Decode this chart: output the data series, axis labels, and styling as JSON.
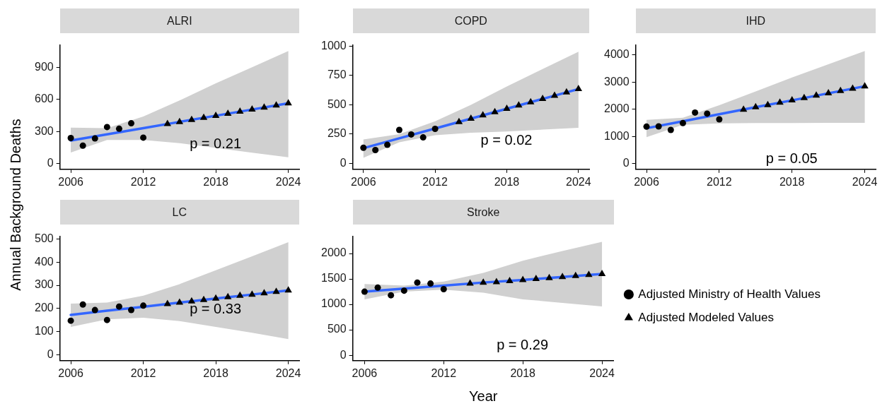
{
  "chart_data": [
    {
      "type": "scatter",
      "title": "ALRI",
      "ylabel": "Annual Background Deaths",
      "xlim": [
        2005.1,
        2024.9
      ],
      "xticks": [
        2006,
        2012,
        2018,
        2024
      ],
      "ylim": [
        -55,
        1110
      ],
      "yticks": [
        0,
        300,
        600,
        900
      ],
      "grid": false,
      "annotations": [
        "p = 0.21"
      ],
      "series": [
        {
          "type": "line",
          "color": "#3366ff",
          "x": [
            2006,
            2009,
            2012,
            2015,
            2018,
            2021,
            2024
          ],
          "values": [
            215,
            273,
            331,
            389,
            447,
            505,
            563
          ],
          "lower": [
            102,
            220,
            219,
            190,
            145,
            100,
            57
          ],
          "upper": [
            335,
            330,
            440,
            590,
            750,
            900,
            1053
          ]
        },
        {
          "type": "scatter",
          "marker": "circle",
          "color": "#000000",
          "x": [
            2006,
            2007,
            2008,
            2009,
            2010,
            2011,
            2012
          ],
          "values": [
            238,
            167,
            234,
            341,
            325,
            376,
            242
          ]
        },
        {
          "type": "scatter",
          "marker": "triangle",
          "color": "#000000",
          "x": [
            2014,
            2015,
            2016,
            2017,
            2018,
            2019,
            2020,
            2021,
            2022,
            2023,
            2024
          ],
          "values": [
            370,
            389,
            408,
            428,
            447,
            466,
            486,
            505,
            524,
            544,
            563
          ]
        }
      ]
    },
    {
      "type": "scatter",
      "title": "COPD",
      "xlim": [
        2005.1,
        2024.9
      ],
      "xticks": [
        2006,
        2012,
        2018,
        2024
      ],
      "ylim": [
        -50,
        1010
      ],
      "yticks": [
        0,
        250,
        500,
        750,
        1000
      ],
      "grid": false,
      "annotations": [
        "p = 0.02"
      ],
      "series": [
        {
          "type": "line",
          "color": "#3366ff",
          "x": [
            2006,
            2009,
            2012,
            2015,
            2018,
            2021,
            2024
          ],
          "values": [
            130,
            214,
            298,
            382,
            466,
            550,
            634
          ],
          "lower": [
            48,
            180,
            240,
            262,
            272,
            288,
            304
          ],
          "upper": [
            205,
            250,
            360,
            500,
            656,
            804,
            952
          ]
        },
        {
          "type": "scatter",
          "marker": "circle",
          "color": "#000000",
          "x": [
            2006,
            2007,
            2008,
            2009,
            2010,
            2011,
            2012
          ],
          "values": [
            134,
            114,
            159,
            286,
            247,
            222,
            295
          ]
        },
        {
          "type": "scatter",
          "marker": "triangle",
          "color": "#000000",
          "x": [
            2014,
            2015,
            2016,
            2017,
            2018,
            2019,
            2020,
            2021,
            2022,
            2023,
            2024
          ],
          "values": [
            354,
            382,
            410,
            438,
            466,
            494,
            522,
            550,
            578,
            606,
            634
          ]
        }
      ]
    },
    {
      "type": "scatter",
      "title": "IHD",
      "xlim": [
        2005.1,
        2024.9
      ],
      "xticks": [
        2006,
        2012,
        2018,
        2024
      ],
      "ylim": [
        -215,
        4375
      ],
      "yticks": [
        0,
        1000,
        2000,
        3000,
        4000
      ],
      "grid": false,
      "annotations": [
        "p = 0.05"
      ],
      "series": [
        {
          "type": "line",
          "color": "#3366ff",
          "x": [
            2006,
            2009,
            2012,
            2015,
            2018,
            2021,
            2024
          ],
          "values": [
            1300,
            1560,
            1820,
            2080,
            2330,
            2590,
            2850
          ],
          "lower": [
            970,
            1430,
            1480,
            1490,
            1490,
            1500,
            1500
          ],
          "upper": [
            1610,
            1690,
            2150,
            2660,
            3170,
            3660,
            4150
          ]
        },
        {
          "type": "scatter",
          "marker": "circle",
          "color": "#000000",
          "x": [
            2006,
            2007,
            2008,
            2009,
            2010,
            2011,
            2012
          ],
          "values": [
            1360,
            1370,
            1240,
            1490,
            1880,
            1840,
            1630
          ]
        },
        {
          "type": "scatter",
          "marker": "triangle",
          "color": "#000000",
          "x": [
            2014,
            2015,
            2016,
            2017,
            2018,
            2019,
            2020,
            2021,
            2022,
            2023,
            2024
          ],
          "values": [
            1990,
            2080,
            2160,
            2250,
            2330,
            2420,
            2510,
            2590,
            2680,
            2760,
            2850
          ]
        }
      ]
    },
    {
      "type": "scatter",
      "title": "LC",
      "xlim": [
        2005.1,
        2024.9
      ],
      "xticks": [
        2006,
        2012,
        2018,
        2024
      ],
      "ylim": [
        -26,
        512
      ],
      "yticks": [
        0,
        100,
        200,
        300,
        400,
        500
      ],
      "grid": false,
      "annotations": [
        "p = 0.33"
      ],
      "series": [
        {
          "type": "line",
          "color": "#3366ff",
          "x": [
            2006,
            2009,
            2012,
            2015,
            2018,
            2021,
            2024
          ],
          "values": [
            172,
            190,
            207,
            225,
            243,
            260,
            278
          ],
          "lower": [
            120,
            153,
            160,
            145,
            120,
            95,
            67
          ],
          "upper": [
            221,
            225,
            255,
            305,
            365,
            425,
            486
          ]
        },
        {
          "type": "scatter",
          "marker": "circle",
          "color": "#000000",
          "x": [
            2006,
            2007,
            2008,
            2009,
            2010,
            2011,
            2012
          ],
          "values": [
            147,
            217,
            193,
            150,
            208,
            193,
            212
          ]
        },
        {
          "type": "scatter",
          "marker": "triangle",
          "color": "#000000",
          "x": [
            2014,
            2015,
            2016,
            2017,
            2018,
            2019,
            2020,
            2021,
            2022,
            2023,
            2024
          ],
          "values": [
            219,
            225,
            231,
            237,
            243,
            249,
            255,
            260,
            266,
            272,
            278
          ]
        }
      ]
    },
    {
      "type": "scatter",
      "title": "Stroke",
      "xlabel": "Year",
      "legend": "right",
      "xlim": [
        2005.1,
        2024.9
      ],
      "xticks": [
        2006,
        2012,
        2018,
        2024
      ],
      "ylim": [
        -107,
        2340
      ],
      "yticks": [
        0,
        500,
        1000,
        1500,
        2000
      ],
      "grid": false,
      "annotations": [
        "p = 0.29"
      ],
      "series": [
        {
          "type": "line",
          "color": "#3366ff",
          "x": [
            2006,
            2009,
            2012,
            2015,
            2018,
            2021,
            2024
          ],
          "values": [
            1250,
            1310,
            1370,
            1430,
            1480,
            1540,
            1600
          ],
          "lower": [
            1100,
            1250,
            1290,
            1230,
            1100,
            1030,
            960
          ],
          "upper": [
            1400,
            1370,
            1450,
            1620,
            1860,
            2050,
            2230
          ]
        },
        {
          "name": "Adjusted Ministry of Health Values",
          "type": "scatter",
          "marker": "circle",
          "color": "#000000",
          "x": [
            2006,
            2007,
            2008,
            2009,
            2010,
            2011,
            2012
          ],
          "values": [
            1250,
            1330,
            1180,
            1270,
            1430,
            1410,
            1300
          ]
        },
        {
          "name": "Adjusted Modeled Values",
          "type": "scatter",
          "marker": "triangle",
          "color": "#000000",
          "x": [
            2014,
            2015,
            2016,
            2017,
            2018,
            2019,
            2020,
            2021,
            2022,
            2023,
            2024
          ],
          "values": [
            1410,
            1430,
            1440,
            1460,
            1480,
            1500,
            1520,
            1540,
            1560,
            1580,
            1600
          ]
        }
      ]
    }
  ]
}
